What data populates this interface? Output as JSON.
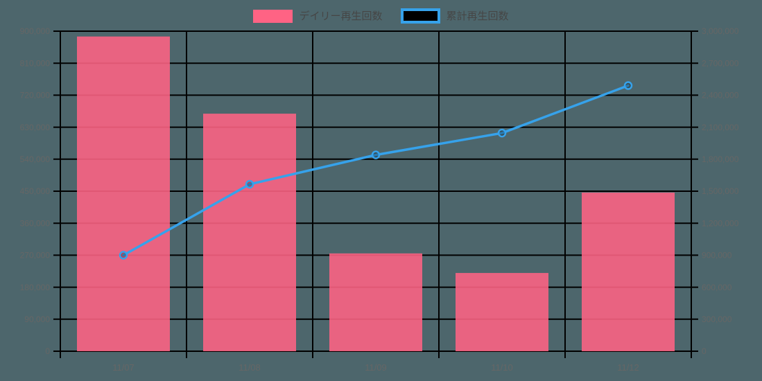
{
  "colors": {
    "background": "#4D666C",
    "bar": "#FF6384",
    "line": "#36A2EB",
    "grid": "#000000",
    "tick_label": "#666666",
    "legend_label": "#464646",
    "legend_line_fill": "#000000",
    "point_fill": "rgba(0,0,0,0.25)"
  },
  "legend": {
    "items": [
      {
        "label": "デイリー再生回数",
        "type": "bar"
      },
      {
        "label": "累計再生回数",
        "type": "line"
      }
    ]
  },
  "chart_data": {
    "type": "bar",
    "title": "",
    "categories": [
      "11/07",
      "11/08",
      "11/09",
      "11/10",
      "11/12"
    ],
    "series": [
      {
        "name": "デイリー再生回数",
        "type": "bar",
        "yaxis": "left",
        "color": "#FF6384",
        "values": [
          885000,
          668000,
          275000,
          220000,
          446000
        ]
      },
      {
        "name": "累計再生回数",
        "type": "line",
        "yaxis": "right",
        "color": "#36A2EB",
        "values": [
          900000,
          1565000,
          1840000,
          2045000,
          2490000
        ]
      }
    ],
    "left_axis": {
      "min": 0,
      "max": 900000,
      "step": 90000,
      "tick_labels": [
        "0",
        "90,000",
        "180,000",
        "270,000",
        "360,000",
        "450,000",
        "540,000",
        "630,000",
        "720,000",
        "810,000",
        "900,000"
      ]
    },
    "right_axis": {
      "min": 0,
      "max": 3000000,
      "step": 300000,
      "tick_labels": [
        "0",
        "300,000",
        "600,000",
        "900,000",
        "1,200,000",
        "1,500,000",
        "1,800,000",
        "2,100,000",
        "2,400,000",
        "2,700,000",
        "3,000,000"
      ]
    },
    "grid": true,
    "legend_position": "top"
  }
}
